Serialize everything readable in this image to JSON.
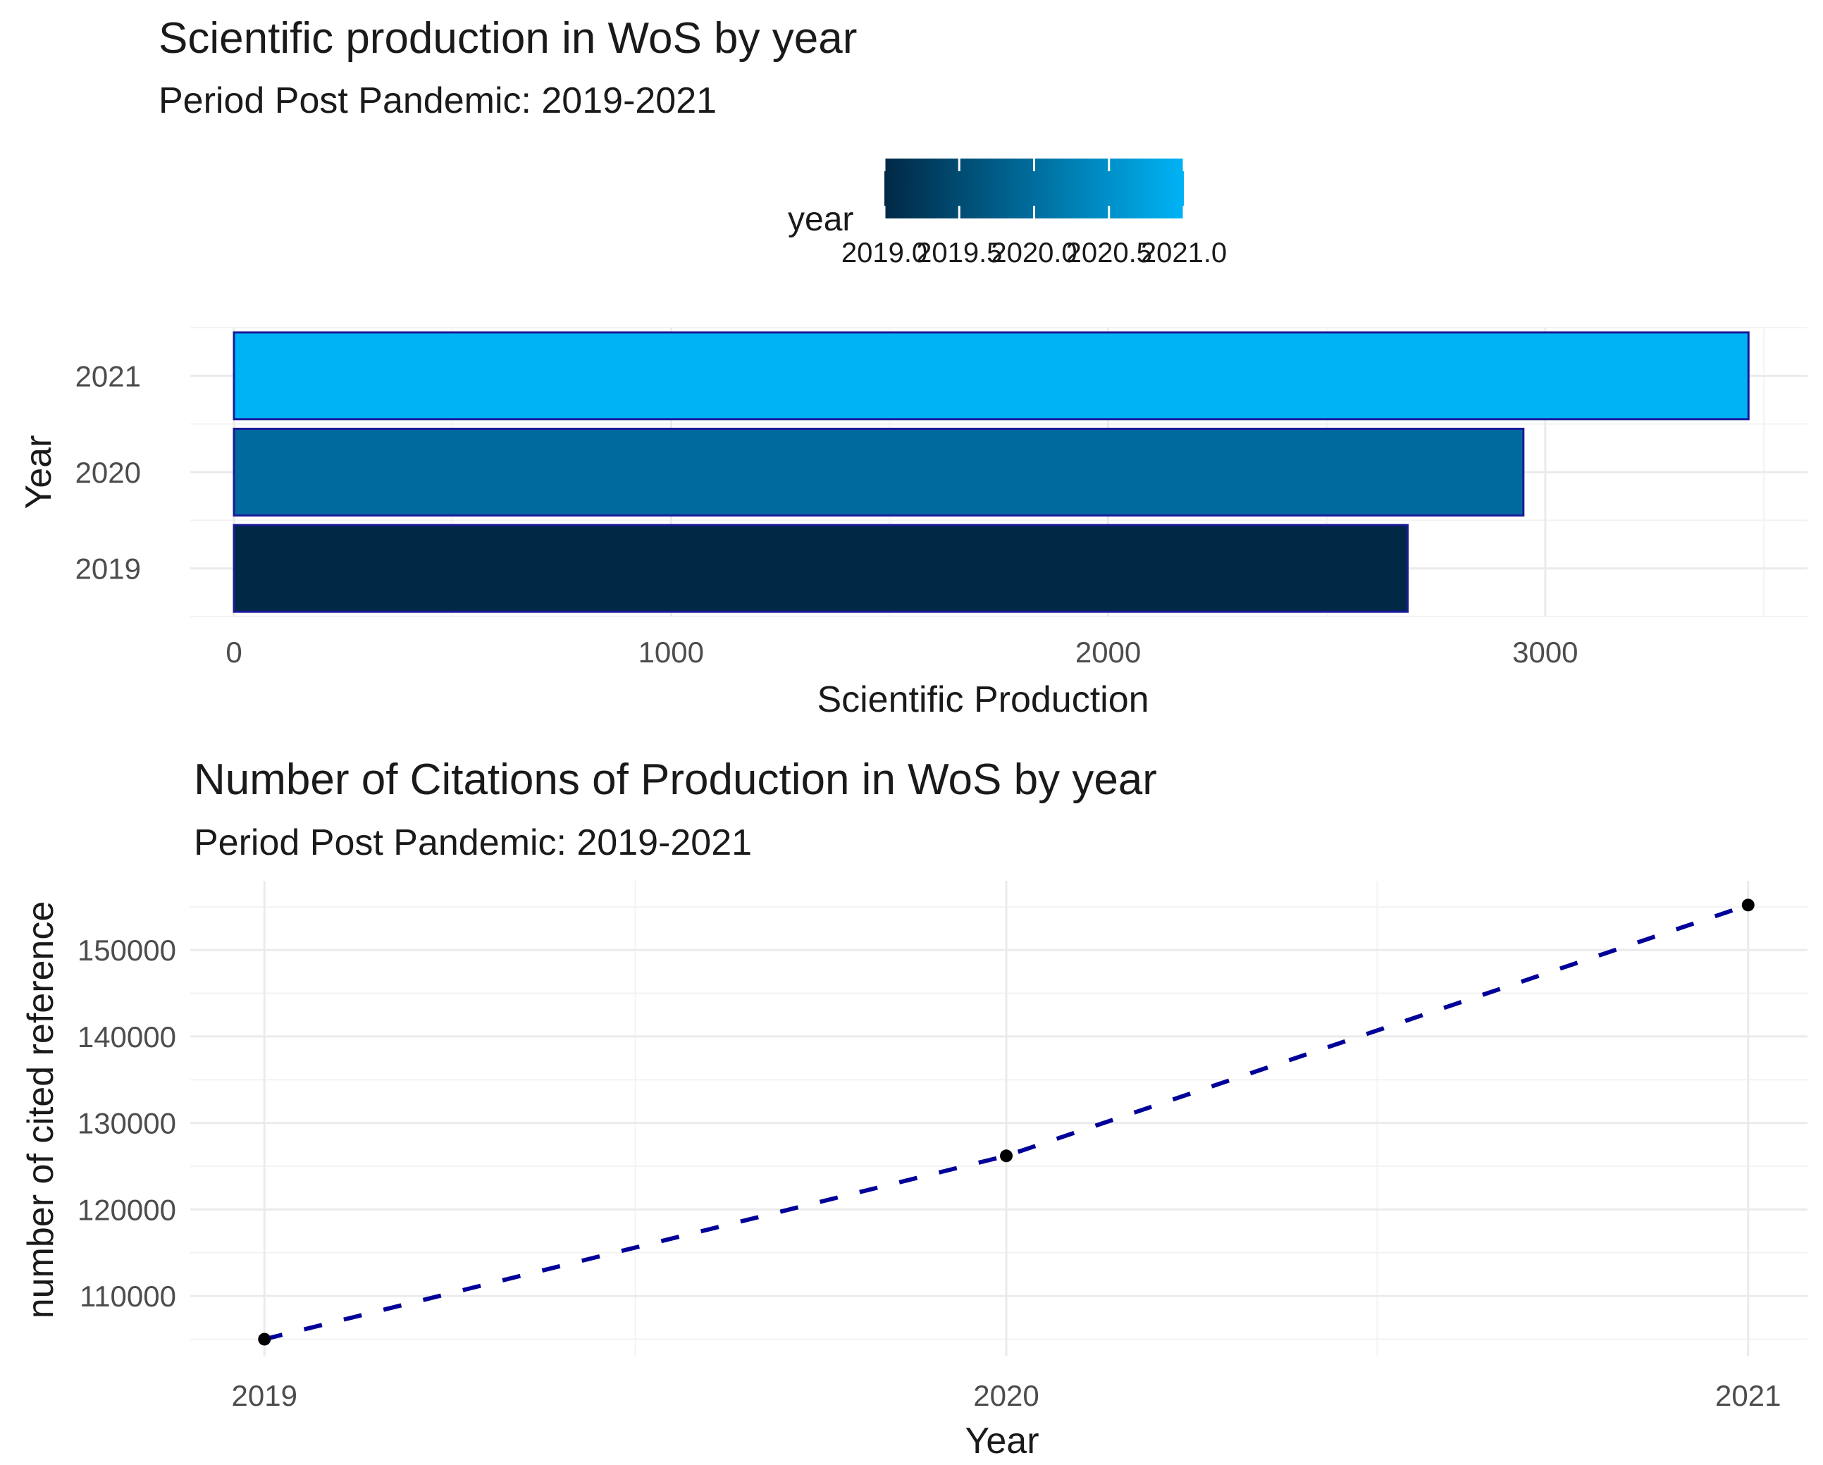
{
  "chart_data": [
    {
      "type": "bar",
      "orientation": "horizontal",
      "title": "Scientific production in WoS by year",
      "subtitle": "Period Post Pandemic: 2019-2021",
      "categories": [
        "2019",
        "2020",
        "2021"
      ],
      "values": [
        2685,
        2950,
        3465
      ],
      "bar_colors": [
        "#012845",
        "#006a9e",
        "#00b3f5"
      ],
      "bar_outline": "#1a1a99",
      "xlabel": "Scientific Production",
      "ylabel": "Year",
      "xlim": [
        -100,
        3600
      ],
      "xticks": [
        0,
        1000,
        2000,
        3000
      ],
      "xtick_labels": [
        "0",
        "1000",
        "2000",
        "3000"
      ],
      "grid": true,
      "legend": {
        "title": "year",
        "placement": "top",
        "type": "colorbar",
        "low_color": "#012845",
        "high_color": "#00b3f5",
        "range": [
          2019,
          2021
        ],
        "ticks": [
          2019,
          2019.5,
          2020,
          2020.5,
          2021
        ],
        "tick_labels": [
          "2019.0",
          "2019.5",
          "2020.0",
          "2020.5",
          "2021.0"
        ]
      }
    },
    {
      "type": "line",
      "title": "Number of Citations of Production in WoS by year",
      "subtitle": "Period Post Pandemic: 2019-2021",
      "x": [
        2019,
        2020,
        2021
      ],
      "y": [
        105000,
        126200,
        155200
      ],
      "line_color": "#000099",
      "line_style": "dashed",
      "point_color": "#000000",
      "xlabel": "Year",
      "ylabel": "number of cited reference",
      "xlim": [
        2018.9,
        2021.08
      ],
      "ylim": [
        103000,
        158000
      ],
      "xticks": [
        2019,
        2020,
        2021
      ],
      "xtick_labels": [
        "2019",
        "2020",
        "2021"
      ],
      "yticks": [
        110000,
        120000,
        130000,
        140000,
        150000
      ],
      "ytick_labels": [
        "110000",
        "120000",
        "130000",
        "140000",
        "150000"
      ],
      "grid": true
    }
  ]
}
